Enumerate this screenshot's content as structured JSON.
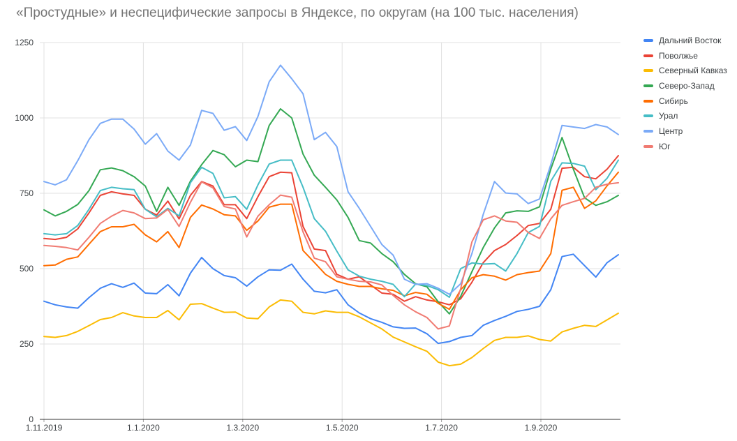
{
  "chart": {
    "title": "«Простудные» и неспецифические запросы в Яндексе, по округам (на 100 тыс. населения)"
  },
  "colors": {
    "background": "#FFFFFF",
    "title_text": "#757575",
    "axis_label_text": "#3C4043",
    "legend_text": "#3C4043",
    "gridline": "#E0E0E0",
    "axis_line": "#333333",
    "axis_tick": "#9E9E9E"
  },
  "chart_data": {
    "type": "line",
    "title": "«Простудные» и неспецифические запросы в Яндексе, по округам (на 100 тыс. населения)",
    "xlabel": "",
    "ylabel": "",
    "ylim": [
      0,
      1250
    ],
    "y_ticks": [
      0,
      250,
      500,
      750,
      1000,
      1250
    ],
    "x_tick_labels": [
      "1.11.2019",
      "1.1.2020",
      "1.3.2020",
      "1.5.2020",
      "1.7.2020",
      "1.9.2020"
    ],
    "grid": true,
    "legend_position": "right",
    "x_dates": [
      "1.11.2019",
      "8.11.2019",
      "15.11.2019",
      "22.11.2019",
      "29.11.2019",
      "6.12.2019",
      "13.12.2019",
      "20.12.2019",
      "27.12.2019",
      "3.1.2020",
      "10.1.2020",
      "17.1.2020",
      "24.1.2020",
      "31.1.2020",
      "7.2.2020",
      "14.2.2020",
      "21.2.2020",
      "28.2.2020",
      "6.3.2020",
      "13.3.2020",
      "20.3.2020",
      "27.3.2020",
      "3.4.2020",
      "10.4.2020",
      "17.4.2020",
      "24.4.2020",
      "1.5.2020",
      "8.5.2020",
      "15.5.2020",
      "22.5.2020",
      "29.5.2020",
      "5.6.2020",
      "12.6.2020",
      "19.6.2020",
      "26.6.2020",
      "3.7.2020",
      "10.7.2020",
      "17.7.2020",
      "24.7.2020",
      "31.7.2020",
      "7.8.2020",
      "14.8.2020",
      "21.8.2020",
      "28.8.2020",
      "4.9.2020",
      "11.9.2020",
      "18.9.2020",
      "25.9.2020",
      "2.10.2020",
      "9.10.2020",
      "16.10.2020",
      "23.10.2020"
    ],
    "series": [
      {
        "name": "Дальний Восток",
        "color": "#4285F4",
        "values": [
          392,
          380,
          373,
          369,
          404,
          435,
          450,
          438,
          452,
          419,
          417,
          447,
          410,
          485,
          537,
          500,
          477,
          470,
          442,
          473,
          496,
          495,
          515,
          465,
          425,
          420,
          430,
          380,
          353,
          334,
          322,
          307,
          302,
          303,
          284,
          252,
          258,
          272,
          278,
          312,
          328,
          342,
          358,
          365,
          375,
          430,
          540,
          548,
          510,
          472,
          520,
          546
        ]
      },
      {
        "name": "Поволжье",
        "color": "#EA4335",
        "values": [
          600,
          597,
          604,
          632,
          685,
          743,
          755,
          748,
          743,
          697,
          678,
          724,
          665,
          743,
          789,
          774,
          712,
          712,
          666,
          739,
          805,
          820,
          818,
          640,
          565,
          560,
          481,
          465,
          473,
          446,
          419,
          415,
          392,
          407,
          396,
          390,
          380,
          400,
          455,
          520,
          560,
          580,
          610,
          643,
          650,
          697,
          833,
          836,
          805,
          798,
          830,
          875
        ]
      },
      {
        "name": "Северный Кавказ",
        "color": "#FBBC04",
        "values": [
          275,
          272,
          278,
          292,
          311,
          331,
          338,
          354,
          343,
          338,
          338,
          361,
          330,
          382,
          384,
          369,
          355,
          356,
          336,
          334,
          373,
          396,
          392,
          355,
          350,
          360,
          355,
          355,
          340,
          320,
          300,
          273,
          257,
          241,
          226,
          190,
          178,
          183,
          205,
          235,
          262,
          272,
          272,
          277,
          265,
          260,
          290,
          302,
          312,
          308,
          330,
          352
        ]
      },
      {
        "name": "Северо-Запад",
        "color": "#34A853",
        "values": [
          695,
          675,
          690,
          713,
          759,
          828,
          834,
          825,
          805,
          774,
          690,
          770,
          710,
          790,
          845,
          892,
          878,
          838,
          860,
          855,
          975,
          1030,
          1000,
          880,
          810,
          770,
          728,
          670,
          593,
          585,
          550,
          523,
          481,
          450,
          440,
          390,
          350,
          408,
          490,
          570,
          635,
          685,
          692,
          690,
          705,
          830,
          935,
          830,
          735,
          710,
          722,
          743
        ]
      },
      {
        "name": "Сибирь",
        "color": "#FF6D01",
        "values": [
          510,
          512,
          531,
          539,
          581,
          623,
          639,
          639,
          647,
          612,
          589,
          623,
          570,
          670,
          711,
          698,
          679,
          675,
          627,
          658,
          704,
          714,
          714,
          560,
          521,
          481,
          458,
          448,
          441,
          441,
          433,
          428,
          410,
          421,
          415,
          385,
          365,
          430,
          470,
          480,
          475,
          462,
          480,
          487,
          492,
          550,
          760,
          770,
          700,
          725,
          775,
          820
        ]
      },
      {
        "name": "Урал",
        "color": "#46BDC6",
        "values": [
          616,
          612,
          616,
          643,
          697,
          759,
          770,
          765,
          762,
          697,
          672,
          700,
          675,
          785,
          836,
          816,
          735,
          739,
          697,
          778,
          847,
          860,
          860,
          770,
          666,
          624,
          558,
          496,
          475,
          465,
          458,
          448,
          407,
          449,
          444,
          430,
          405,
          500,
          519,
          515,
          517,
          492,
          550,
          620,
          640,
          790,
          851,
          849,
          840,
          762,
          800,
          860
        ]
      },
      {
        "name": "Центр",
        "color": "#7BAAF7",
        "values": [
          789,
          778,
          795,
          858,
          928,
          982,
          996,
          996,
          963,
          913,
          948,
          890,
          860,
          910,
          1025,
          1015,
          959,
          971,
          925,
          1005,
          1120,
          1175,
          1130,
          1080,
          928,
          952,
          905,
          755,
          700,
          640,
          580,
          545,
          465,
          448,
          450,
          435,
          415,
          450,
          550,
          680,
          789,
          751,
          748,
          716,
          731,
          845,
          975,
          970,
          965,
          978,
          970,
          945
        ]
      },
      {
        "name": "Юг",
        "color": "#F07B72",
        "values": [
          577,
          574,
          570,
          562,
          604,
          650,
          674,
          693,
          685,
          666,
          668,
          697,
          640,
          720,
          788,
          768,
          706,
          698,
          605,
          674,
          712,
          744,
          737,
          622,
          535,
          523,
          473,
          465,
          458,
          456,
          446,
          411,
          380,
          357,
          338,
          300,
          310,
          434,
          589,
          662,
          675,
          658,
          654,
          620,
          600,
          665,
          710,
          722,
          733,
          770,
          780,
          785
        ]
      }
    ]
  }
}
